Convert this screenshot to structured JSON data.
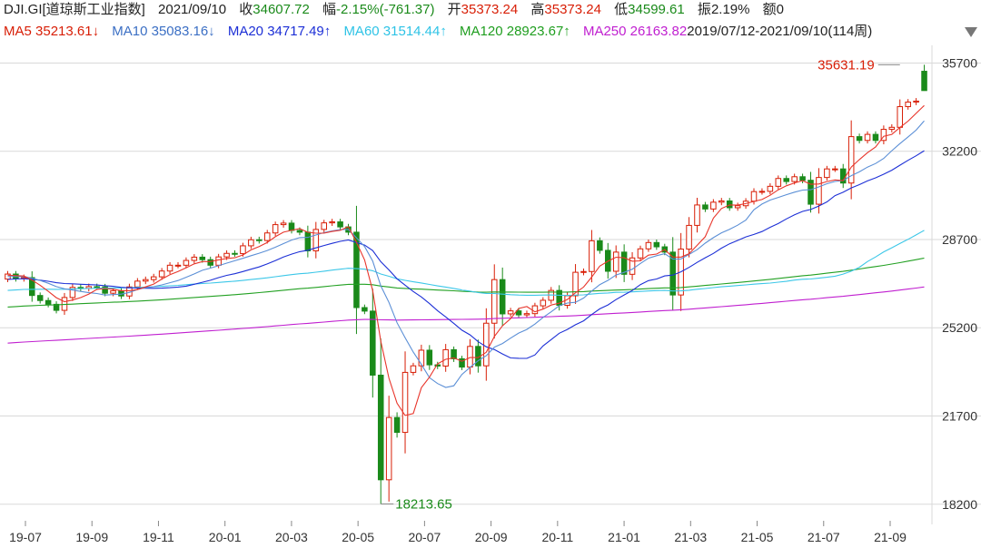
{
  "header": {
    "symbol": "DJI.GI[道琼斯工业指数]",
    "date": "2021/09/10",
    "close_label": "收",
    "close": "34607.72",
    "change_label": "幅",
    "change": "-2.15%(-761.37)",
    "open_label": "开",
    "open": "35373.24",
    "high_label": "高",
    "high": "35373.24",
    "low_label": "低",
    "low": "34599.61",
    "amp_label": "振",
    "amp": "2.19%",
    "amount_label": "额",
    "amount": "0"
  },
  "ma_bar": {
    "ma5": "MA5  35213.61↓",
    "ma10": "MA10  35083.16↓",
    "ma20": "MA20  34717.49↑",
    "ma60": "MA60  31514.44↑",
    "ma120": "MA120  28923.67↑",
    "ma250": "MA250  26163.82",
    "range": "2019/07/12-2021/09/10(114周)"
  },
  "colors": {
    "up": "#d81e06",
    "down": "#1a8a1a",
    "ma5": "#e8352b",
    "ma10": "#5b8fd6",
    "ma20": "#1c2fd6",
    "ma60": "#3cc7e8",
    "ma120": "#22a022",
    "ma250": "#c01fd0",
    "grid": "#d9d9d9"
  },
  "chart_data": {
    "type": "candlestick",
    "y_ticks": [
      35700,
      32200,
      28700,
      25200,
      21700,
      18200
    ],
    "ylim": [
      17400,
      36400
    ],
    "x_ticks": [
      "19-07",
      "19-09",
      "19-11",
      "20-01",
      "20-03",
      "20-05",
      "20-07",
      "20-09",
      "20-11",
      "21-01",
      "21-03",
      "21-05",
      "21-07",
      "21-09"
    ],
    "annotations": [
      {
        "label": "35631.19",
        "type": "max",
        "value": 35631.19
      },
      {
        "label": "18213.65",
        "type": "min",
        "value": 18213.65
      }
    ],
    "weekly_close": [
      27330,
      27150,
      27190,
      26480,
      26280,
      26130,
      25890,
      26400,
      26800,
      26760,
      26830,
      26820,
      26570,
      26670,
      26460,
      26820,
      27050,
      27110,
      27220,
      27450,
      27680,
      27680,
      27870,
      28000,
      27900,
      27680,
      28010,
      28150,
      28140,
      28450,
      28690,
      28660,
      28960,
      29290,
      29350,
      29060,
      28990,
      28250,
      29100,
      29360,
      29400,
      29200,
      28990,
      26000,
      25860,
      23320,
      19170,
      21640,
      21050,
      23430,
      23690,
      24310,
      23730,
      23680,
      24330,
      23970,
      23640,
      24460,
      23690,
      25380,
      27110,
      25750,
      25870,
      25710,
      25760,
      26070,
      26290,
      26680,
      26090,
      26470,
      27400,
      27430,
      28650,
      28270,
      27440,
      28200,
      27320,
      27970,
      28330,
      28580,
      28410,
      28200,
      26500,
      28320,
      29260,
      30070,
      29910,
      30180,
      30230,
      29960,
      30040,
      30220,
      30600,
      30610,
      30810,
      31120,
      31000,
      31190,
      31050,
      30100,
      31160,
      31500,
      31500,
      30940,
      32780,
      32630,
      32870,
      32630,
      33070,
      33150,
      33970,
      34150,
      34190,
      34630
    ]
  }
}
